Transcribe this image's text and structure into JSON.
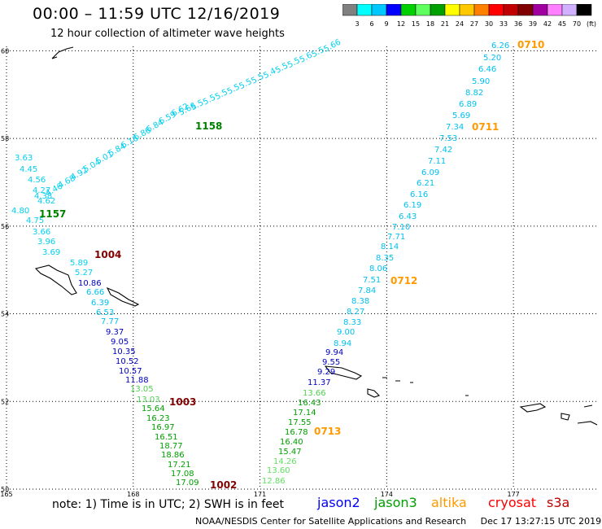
{
  "title": "00:00 – 11:59 UTC 12/16/2019",
  "subtitle": "12 hour collection of altimeter wave heights",
  "colorbar": {
    "labels": [
      "3",
      "6",
      "9",
      "12",
      "15",
      "18",
      "21",
      "24",
      "27",
      "30",
      "33",
      "36",
      "39",
      "42",
      "45",
      "70",
      "(ft)"
    ],
    "colors": [
      "#808080",
      "#00ffff",
      "#00c8ff",
      "#0000ff",
      "#00d000",
      "#60ff60",
      "#00a000",
      "#ffff00",
      "#ffc800",
      "#ff8000",
      "#ff0000",
      "#c00000",
      "#800000",
      "#a000a0",
      "#ff80ff",
      "#d0b0ff",
      "#000000"
    ]
  },
  "lat_labels": [
    "60",
    "58",
    "56",
    "54",
    "52",
    "50"
  ],
  "lon_labels": [
    "165",
    "168",
    "171",
    "174",
    "177"
  ],
  "note": "note:  1) Time is in UTC;  2) SWH is in feet",
  "legend": [
    {
      "name": "jason2",
      "color": "#0000ff"
    },
    {
      "name": "jason3",
      "color": "#00a000"
    },
    {
      "name": "altika",
      "color": "#ff9900"
    },
    {
      "name": "cryosat",
      "color": "#ff0000"
    },
    {
      "name": "s3a",
      "color": "#c00000"
    }
  ],
  "footer_left": "NOAA/NESDIS Center for Satellite Applications and Research",
  "footer_right": "Dec 17 13:27:15 UTC 2019",
  "times": [
    {
      "text": "1158",
      "color": "#008000"
    },
    {
      "text": "1157",
      "color": "#008000"
    },
    {
      "text": "1004",
      "color": "#800000"
    },
    {
      "text": "1003",
      "color": "#800000"
    },
    {
      "text": "1002",
      "color": "#800000"
    },
    {
      "text": "0710",
      "color": "#ff9900"
    },
    {
      "text": "0711",
      "color": "#ff9900"
    },
    {
      "text": "0712",
      "color": "#ff9900"
    },
    {
      "text": "0713",
      "color": "#ff9900"
    }
  ],
  "track_a": [
    "3.63",
    "4.45",
    "4.56",
    "4.27",
    "4.38",
    "4.62",
    "4.80",
    "4.75",
    "3.66",
    "3.96",
    "3.69",
    "5.89",
    "5.27",
    "10.86",
    "6.66",
    "6.39",
    "6.53",
    "7.77",
    "9.37",
    "9.05",
    "10.35",
    "10.52",
    "10.57",
    "11.88",
    "13.05",
    "13.03",
    "15.64",
    "16.23",
    "16.97",
    "16.51",
    "18.77",
    "18.86",
    "17.21",
    "17.08",
    "17.09"
  ],
  "track_a_colors": [
    "#00d0f0",
    "#00d0f0",
    "#00d0f0",
    "#00d0f0",
    "#00d0f0",
    "#00d0f0",
    "#00d0f0",
    "#00d0f0",
    "#00d0f0",
    "#00d0f0",
    "#00d0f0",
    "#00d0f0",
    "#00d0f0",
    "#0000c0",
    "#00c0f0",
    "#00c0f0",
    "#00c0f0",
    "#00c0f0",
    "#0000c0",
    "#0000c0",
    "#0000c0",
    "#0000c0",
    "#0000c0",
    "#0000c0",
    "#50d050",
    "#50d050",
    "#00a000",
    "#00a000",
    "#00a000",
    "#00a000",
    "#00a000",
    "#00a000",
    "#00a000",
    "#00a000",
    "#00a000"
  ],
  "track_b": [
    "4.46",
    "4.68",
    "4.92",
    "5.04",
    "5.01",
    "5.84",
    "6.16",
    "6.86",
    "6.84",
    "6.59",
    "6.62",
    "5.66",
    "5.5",
    "5.5",
    "5.5",
    "5.5",
    "5.5",
    "5.5",
    "5.4",
    "5.5",
    "5.5",
    "5.6",
    "5.5",
    "5.66"
  ],
  "track_c": [
    "6.26",
    "5.20",
    "6.46",
    "5.90",
    "8.82",
    "6.89",
    "5.69",
    "7.34",
    "7.53",
    "7.42",
    "7.11",
    "6.09",
    "6.21",
    "6.16",
    "6.19",
    "6.43",
    "7.10",
    "7.71",
    "8.14",
    "8.35",
    "8.06",
    "7.51",
    "7.84",
    "8.38",
    "8.27",
    "8.33",
    "9.00",
    "8.94",
    "9.94",
    "9.55",
    "9.29",
    "11.37",
    "13.66",
    "16.43",
    "17.14",
    "17.55",
    "16.78",
    "16.40",
    "15.47",
    "14.26",
    "13.60",
    "12.86"
  ],
  "track_c_colors": [
    "#00c0f0",
    "#00c0f0",
    "#00c0f0",
    "#00c0f0",
    "#00c0f0",
    "#00c0f0",
    "#00c0f0",
    "#00c0f0",
    "#00c0f0",
    "#00c0f0",
    "#00c0f0",
    "#00c0f0",
    "#00c0f0",
    "#00c0f0",
    "#00c0f0",
    "#00c0f0",
    "#00c0f0",
    "#00c0f0",
    "#00c0f0",
    "#00c0f0",
    "#00c0f0",
    "#00c0f0",
    "#00c0f0",
    "#00c0f0",
    "#00c0f0",
    "#00c0f0",
    "#00c0f0",
    "#00c0f0",
    "#0000c0",
    "#0000c0",
    "#0000c0",
    "#0000c0",
    "#50d050",
    "#00a000",
    "#00a000",
    "#00a000",
    "#00a000",
    "#00a000",
    "#00a000",
    "#60e060",
    "#60e060",
    "#60e060"
  ]
}
